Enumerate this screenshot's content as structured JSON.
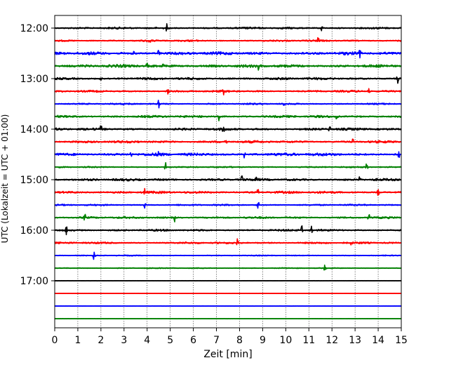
{
  "chart_data": {
    "type": "line",
    "title": "",
    "xlabel": "Zeit  [min]",
    "ylabel": "UTC (Lokalzeit = UTC + 01:00)",
    "xlim": [
      0,
      15
    ],
    "x_ticks": [
      "0",
      "1",
      "2",
      "3",
      "4",
      "5",
      "6",
      "7",
      "8",
      "9",
      "10",
      "11",
      "12",
      "13",
      "14",
      "15"
    ],
    "y_tick_labels": [
      "12:00",
      "13:00",
      "14:00",
      "15:00",
      "16:00",
      "17:00"
    ],
    "grid_x": "dotted",
    "trace_interval_minutes": 15,
    "traces": [
      {
        "time": "12:00",
        "color": "#000000",
        "amplitude": 1.0,
        "spikes": [
          4.85,
          11.55
        ]
      },
      {
        "time": "12:15",
        "color": "#ff0000",
        "amplitude": 0.9,
        "spikes": [
          4.1,
          11.4
        ]
      },
      {
        "time": "12:30",
        "color": "#0000ff",
        "amplitude": 1.5,
        "spikes": [
          3.4,
          4.5,
          13.2
        ]
      },
      {
        "time": "12:45",
        "color": "#008000",
        "amplitude": 1.5,
        "spikes": [
          4.0,
          4.7,
          8.8
        ]
      },
      {
        "time": "13:00",
        "color": "#000000",
        "amplitude": 1.2,
        "spikes": [
          2.0,
          14.85
        ]
      },
      {
        "time": "13:15",
        "color": "#ff0000",
        "amplitude": 1.0,
        "spikes": [
          4.9,
          7.3,
          13.6
        ]
      },
      {
        "time": "13:30",
        "color": "#0000ff",
        "amplitude": 0.8,
        "spikes": [
          4.5,
          9.9
        ]
      },
      {
        "time": "13:45",
        "color": "#008000",
        "amplitude": 1.2,
        "spikes": [
          0.15,
          7.1,
          12.2
        ]
      },
      {
        "time": "14:00",
        "color": "#000000",
        "amplitude": 1.2,
        "spikes": [
          2.0,
          7.3,
          11.9
        ]
      },
      {
        "time": "14:15",
        "color": "#ff0000",
        "amplitude": 1.2,
        "spikes": [
          7.4,
          12.9
        ]
      },
      {
        "time": "14:30",
        "color": "#0000ff",
        "amplitude": 1.5,
        "spikes": [
          3.3,
          4.5,
          8.2,
          14.9
        ]
      },
      {
        "time": "14:45",
        "color": "#008000",
        "amplitude": 0.7,
        "spikes": [
          4.8,
          13.5
        ]
      },
      {
        "time": "15:00",
        "color": "#000000",
        "amplitude": 1.2,
        "spikes": [
          8.1,
          8.7,
          13.2
        ]
      },
      {
        "time": "15:15",
        "color": "#ff0000",
        "amplitude": 1.2,
        "spikes": [
          3.9,
          8.8,
          14.0
        ]
      },
      {
        "time": "15:30",
        "color": "#0000ff",
        "amplitude": 0.8,
        "spikes": [
          3.9,
          8.8
        ]
      },
      {
        "time": "15:45",
        "color": "#008000",
        "amplitude": 1.0,
        "spikes": [
          1.3,
          5.2,
          13.6
        ]
      },
      {
        "time": "16:00",
        "color": "#000000",
        "amplitude": 1.0,
        "spikes": [
          0.5,
          10.7,
          11.1
        ]
      },
      {
        "time": "16:15",
        "color": "#ff0000",
        "amplitude": 1.0,
        "spikes": [
          7.9,
          12.8
        ]
      },
      {
        "time": "16:30",
        "color": "#0000ff",
        "amplitude": 0.5,
        "spikes": [
          1.7
        ]
      },
      {
        "time": "16:45",
        "color": "#008000",
        "amplitude": 0.5,
        "spikes": [
          11.7
        ]
      },
      {
        "time": "17:00",
        "color": "#000000",
        "amplitude": 0.15,
        "spikes": []
      },
      {
        "time": "17:15",
        "color": "#ff0000",
        "amplitude": 0.15,
        "spikes": []
      },
      {
        "time": "17:30",
        "color": "#0000ff",
        "amplitude": 0.15,
        "spikes": []
      },
      {
        "time": "17:45",
        "color": "#008000",
        "amplitude": 0.15,
        "spikes": []
      }
    ]
  }
}
